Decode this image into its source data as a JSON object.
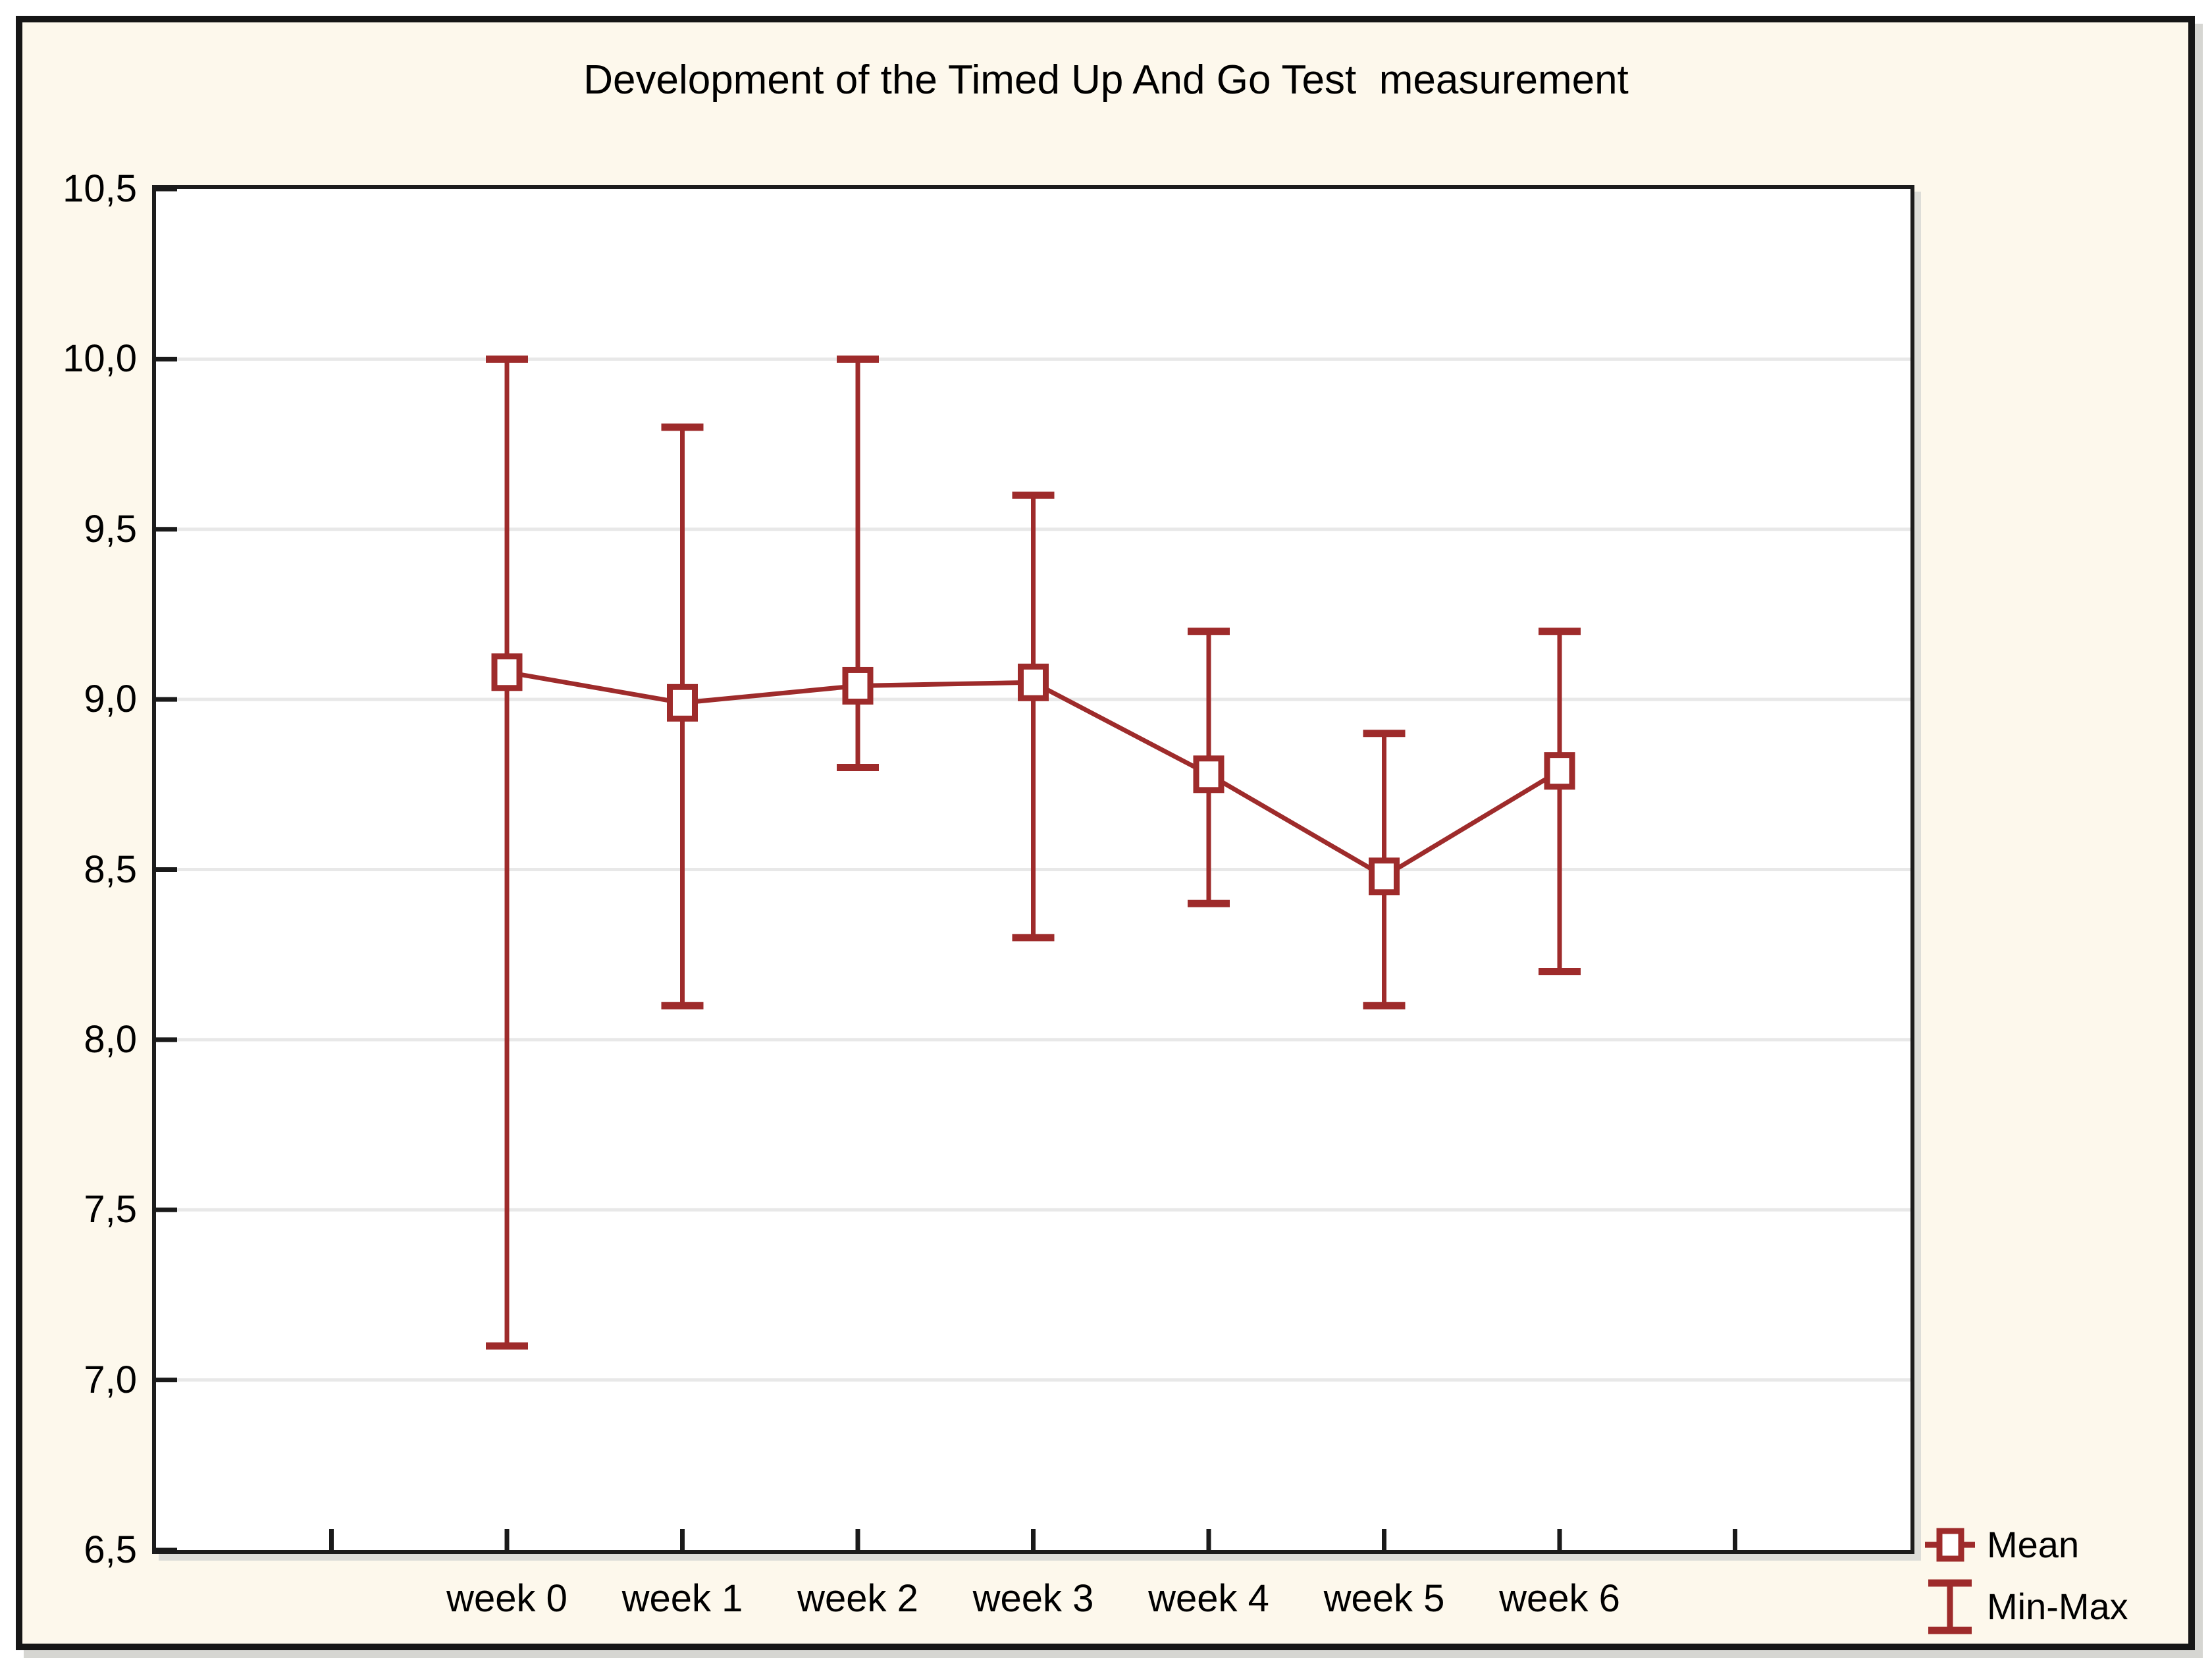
{
  "chart_data": {
    "type": "line",
    "title": "Development of the Timed Up And Go Test  measurement",
    "categories": [
      "week 0",
      "week 1",
      "week 2",
      "week 3",
      "week 4",
      "week 5",
      "week 6"
    ],
    "series": [
      {
        "name": "Mean",
        "values": [
          9.08,
          8.99,
          9.04,
          9.05,
          8.78,
          8.48,
          8.79
        ]
      },
      {
        "name": "Min",
        "values": [
          7.1,
          8.1,
          8.8,
          8.3,
          8.4,
          8.1,
          8.2
        ]
      },
      {
        "name": "Max",
        "values": [
          10.0,
          9.8,
          10.0,
          9.6,
          9.2,
          8.9,
          9.2
        ]
      }
    ],
    "xlabel": "",
    "ylabel": "",
    "ylim": [
      6.5,
      10.5
    ],
    "yticks": [
      {
        "label": "6,5",
        "value": 6.5
      },
      {
        "label": "7,0",
        "value": 7.0
      },
      {
        "label": "7,5",
        "value": 7.5
      },
      {
        "label": "8,0",
        "value": 8.0
      },
      {
        "label": "8,5",
        "value": 8.5
      },
      {
        "label": "9,0",
        "value": 9.0
      },
      {
        "label": "9,5",
        "value": 9.5
      },
      {
        "label": "10,0",
        "value": 10.0
      },
      {
        "label": "10,5",
        "value": 10.5
      }
    ],
    "grid_values": [
      7.0,
      7.5,
      8.0,
      8.5,
      9.0,
      9.5,
      10.0
    ],
    "grid": "horizontal-only",
    "decimal_separator": ",",
    "legend": {
      "mean": "Mean",
      "minmax": "Min-Max",
      "position": "bottom-right"
    },
    "colors": {
      "series": "#9e2b2b",
      "grid": "#e8e8e8",
      "axis": "#1a1a1a",
      "figure_bg": "#fdf8ec",
      "plot_bg": "#ffffff",
      "text": "#000000"
    }
  }
}
